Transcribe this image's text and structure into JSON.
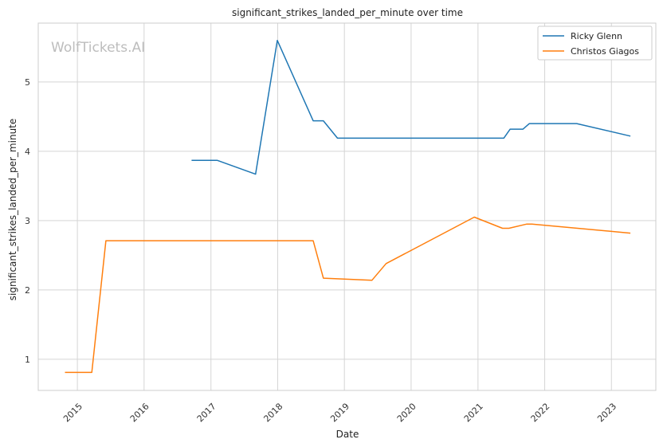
{
  "chart_data": {
    "type": "line",
    "title": "significant_strikes_landed_per_minute over time",
    "xlabel": "Date",
    "ylabel": "significant_strikes_landed_per_minute",
    "watermark": "WolfTickets.AI",
    "x_ticks": [
      "2015",
      "2016",
      "2017",
      "2018",
      "2019",
      "2020",
      "2021",
      "2022",
      "2023"
    ],
    "y_ticks": [
      "1",
      "2",
      "3",
      "4",
      "5"
    ],
    "xlim": [
      "2014-06-01",
      "2023-09-01"
    ],
    "ylim": [
      0.55,
      5.85
    ],
    "grid": true,
    "legend_position": "top-right",
    "series": [
      {
        "name": "Ricky Glenn",
        "color": "#1f77b4",
        "points": [
          [
            "2016-09-17",
            3.87
          ],
          [
            "2017-02-04",
            3.87
          ],
          [
            "2017-09-02",
            3.67
          ],
          [
            "2017-12-30",
            5.6
          ],
          [
            "2018-07-14",
            4.44
          ],
          [
            "2018-09-08",
            4.44
          ],
          [
            "2018-11-24",
            4.19
          ],
          [
            "2021-05-22",
            4.19
          ],
          [
            "2021-06-26",
            4.32
          ],
          [
            "2021-09-04",
            4.32
          ],
          [
            "2021-10-09",
            4.4
          ],
          [
            "2022-06-25",
            4.4
          ],
          [
            "2023-04-15",
            4.22
          ]
        ]
      },
      {
        "name": "Christos Giagos",
        "color": "#ff7f0e",
        "points": [
          [
            "2014-10-25",
            0.81
          ],
          [
            "2015-03-21",
            0.81
          ],
          [
            "2015-06-06",
            2.71
          ],
          [
            "2018-07-14",
            2.71
          ],
          [
            "2018-09-08",
            2.17
          ],
          [
            "2019-06-01",
            2.14
          ],
          [
            "2019-08-17",
            2.38
          ],
          [
            "2020-12-12",
            3.05
          ],
          [
            "2021-05-15",
            2.89
          ],
          [
            "2021-06-19",
            2.89
          ],
          [
            "2021-09-25",
            2.95
          ],
          [
            "2021-10-23",
            2.95
          ],
          [
            "2023-04-15",
            2.82
          ]
        ]
      }
    ]
  }
}
